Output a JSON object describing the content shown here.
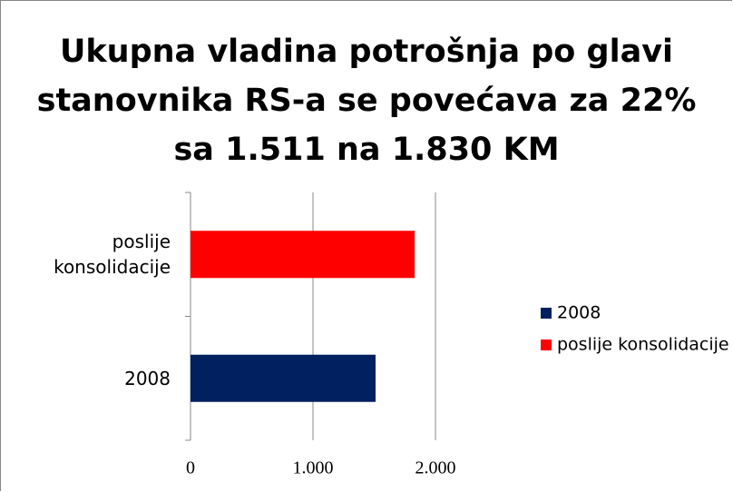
{
  "chart_data": {
    "type": "bar",
    "orientation": "horizontal",
    "title": "Ukupna vladina potrošnja po glavi\nstanovnika RS-a se povećava za 22%\nsa 1.511 na 1.830 KM",
    "categories": [
      "2008",
      "poslije konsolidacije"
    ],
    "values": [
      1511,
      1830
    ],
    "colors": [
      "#002060",
      "#ff0000"
    ],
    "xlim": [
      0,
      2000
    ],
    "xticks": [
      0,
      {
        "value": 1000,
        "label": "1.000"
      },
      {
        "value": 2000,
        "label": "2.000"
      }
    ],
    "grid": true,
    "legend": "right"
  }
}
